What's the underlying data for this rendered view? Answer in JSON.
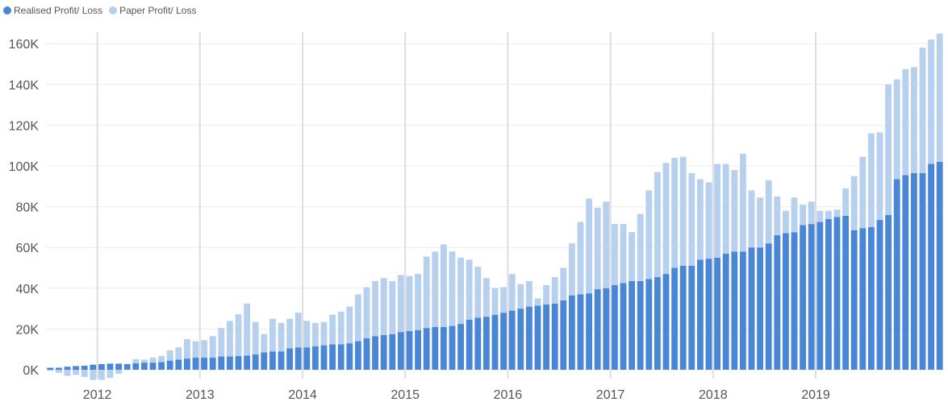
{
  "chart_data": {
    "type": "bar",
    "stacked": true,
    "title": "",
    "xlabel": "",
    "ylabel": "",
    "ylim": [
      -5000,
      165000
    ],
    "yticks": [
      0,
      20000,
      40000,
      60000,
      80000,
      100000,
      120000,
      140000,
      160000
    ],
    "ytick_labels": [
      "0K",
      "20K",
      "40K",
      "60K",
      "80K",
      "100K",
      "120K",
      "140K",
      "160K"
    ],
    "xtick_labels": [
      "2012",
      "2013",
      "2014",
      "2015",
      "2016",
      "2017",
      "2018",
      "2019"
    ],
    "x_start": "2011-07",
    "x_end": "2019-11",
    "legend_position": "top-left",
    "grid": true,
    "series": [
      {
        "name": "Realised Profit/ Loss",
        "color": "#4a86d6",
        "values": [
          1000,
          1000,
          1500,
          1800,
          2000,
          2500,
          2800,
          3000,
          3000,
          2800,
          3200,
          3500,
          3500,
          3800,
          4500,
          5000,
          5500,
          6000,
          6000,
          6000,
          6500,
          6500,
          6700,
          7000,
          7500,
          8500,
          9000,
          9000,
          10500,
          11000,
          11000,
          11500,
          12000,
          12500,
          12500,
          13000,
          14000,
          15500,
          16500,
          17000,
          17500,
          18500,
          19000,
          19500,
          20500,
          21000,
          21000,
          21500,
          22500,
          24500,
          25500,
          26000,
          27000,
          28000,
          29000,
          30000,
          31000,
          31500,
          32000,
          32500,
          34000,
          36500,
          37000,
          37500,
          39500,
          40000,
          41500,
          42500,
          43500,
          43500,
          44500,
          45500,
          47000,
          50000,
          51000,
          51000,
          54000,
          54500,
          55000,
          57000,
          58000,
          58000,
          60000,
          60000,
          62000,
          66000,
          67000,
          67500,
          71000,
          71500,
          72500,
          74000,
          75000,
          75500,
          68500,
          69500,
          70000,
          73500,
          76000,
          93500,
          95500,
          96500,
          96500,
          101000,
          102000
        ]
      },
      {
        "name": "Paper Profit/ Loss",
        "color": "#b7d0ee",
        "values": [
          -500,
          -1500,
          -3000,
          -2500,
          -3500,
          -5000,
          -5000,
          -4000,
          -2000,
          0,
          2000,
          1500,
          2500,
          3000,
          5000,
          6000,
          9500,
          8000,
          8500,
          10500,
          14000,
          17500,
          20500,
          25500,
          16000,
          9000,
          16000,
          14000,
          14500,
          17000,
          13000,
          11500,
          11500,
          14500,
          16000,
          18000,
          23000,
          25000,
          27000,
          28000,
          26000,
          28000,
          27000,
          27500,
          35000,
          37000,
          40500,
          36500,
          32500,
          29500,
          25000,
          19000,
          13000,
          12500,
          18000,
          12000,
          12500,
          3500,
          9500,
          13000,
          16000,
          25500,
          35500,
          46500,
          40000,
          42500,
          30000,
          29000,
          24000,
          33000,
          43500,
          51500,
          54500,
          54000,
          53500,
          45500,
          39500,
          37500,
          46000,
          44000,
          40000,
          48000,
          28000,
          24500,
          31000,
          19000,
          11000,
          17000,
          10000,
          11000,
          5500,
          4000,
          3500,
          13500,
          26500,
          35000,
          46000,
          43000,
          64000,
          49000,
          52000,
          52000,
          61500,
          61000,
          63000
        ]
      }
    ]
  }
}
